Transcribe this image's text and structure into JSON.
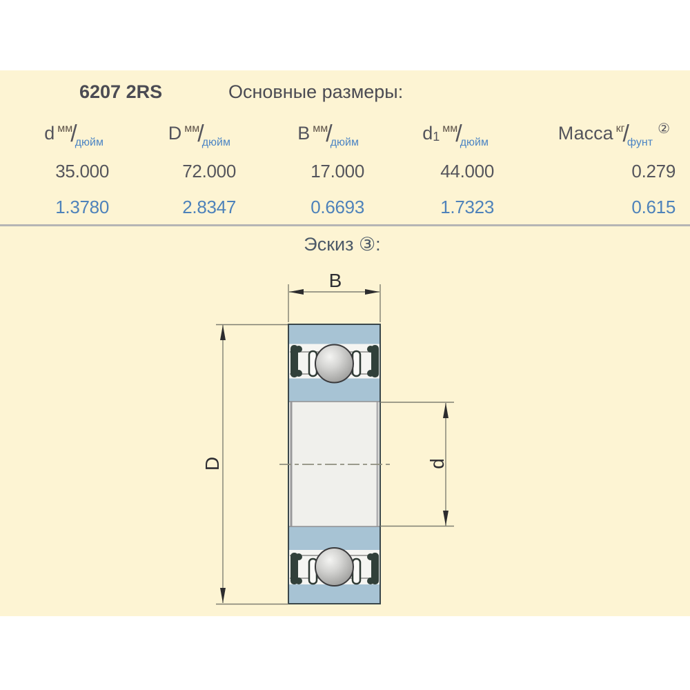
{
  "header": {
    "part_number": "6207 2RS",
    "section_title": "Основные размеры:"
  },
  "table": {
    "unit_separator": "/",
    "columns": [
      {
        "symbol": "d",
        "sub": "",
        "unit_top": "мм",
        "unit_bottom": "дюйм",
        "note": "",
        "mm": "35.000",
        "inch": "1.3780"
      },
      {
        "symbol": "D",
        "sub": "",
        "unit_top": "мм",
        "unit_bottom": "дюйм",
        "note": "",
        "mm": "72.000",
        "inch": "2.8347"
      },
      {
        "symbol": "B",
        "sub": "",
        "unit_top": "мм",
        "unit_bottom": "дюйм",
        "note": "",
        "mm": "17.000",
        "inch": "0.6693"
      },
      {
        "symbol": "d",
        "sub": "1",
        "unit_top": "мм",
        "unit_bottom": "дюйм",
        "note": "",
        "mm": "44.000",
        "inch": "1.7323"
      },
      {
        "symbol": "Масса",
        "sub": "",
        "unit_top": "кг",
        "unit_bottom": "фунт",
        "note": "②",
        "mm": "0.279",
        "inch": "0.615"
      }
    ]
  },
  "sketch": {
    "label": "Эскиз ③:",
    "dim_width": "B",
    "dim_outer_diameter": "D",
    "dim_bore_diameter": "d"
  },
  "colors": {
    "panel_background": "#fdf4d3",
    "accent_blue": "#4e82ba",
    "text_dark": "#4b4b53",
    "bearing_ring_blue": "#a7c3d4",
    "seal_dark": "#31403a",
    "divider_gray": "#b5b5b4"
  }
}
